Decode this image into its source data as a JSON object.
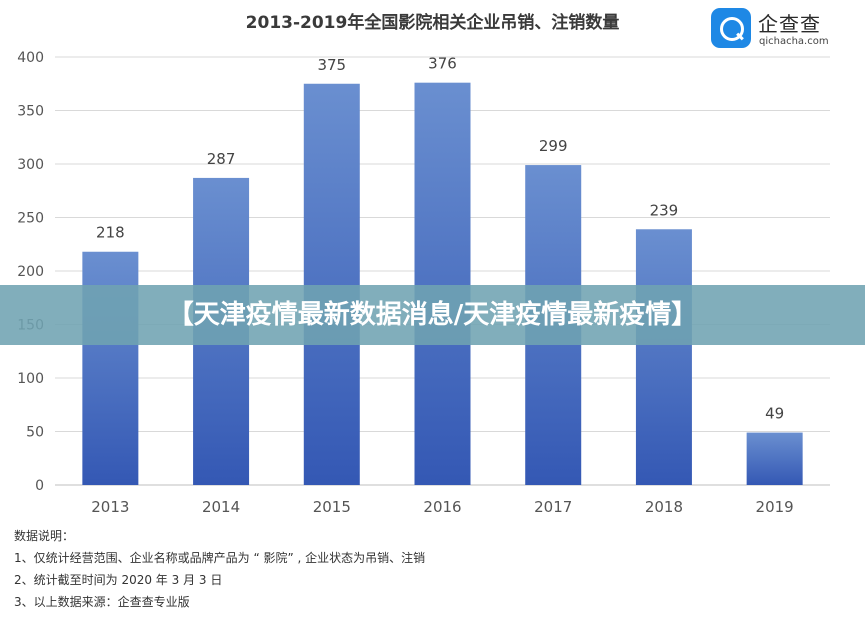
{
  "chart_data": {
    "type": "bar",
    "title": "2013-2019年全国影院相关企业吊销、注销数量",
    "categories": [
      "2013",
      "2014",
      "2015",
      "2016",
      "2017",
      "2018",
      "2019"
    ],
    "values": [
      218,
      287,
      375,
      376,
      299,
      239,
      49
    ],
    "data_labels": [
      "218",
      "287",
      "375",
      "376",
      "299",
      "239",
      "49"
    ],
    "ylim": [
      0,
      400
    ],
    "y_ticks": [
      0,
      50,
      100,
      150,
      200,
      250,
      300,
      350,
      400
    ],
    "y_tick_labels": [
      "0",
      "50",
      "100",
      "150",
      "200",
      "250",
      "300",
      "350",
      "400"
    ],
    "xlabel": "",
    "ylabel": "",
    "grid": true,
    "bar_color_top": "#6a8fd0",
    "bar_color_bottom": "#3458b4"
  },
  "logo": {
    "name": "企查查",
    "domain": "qichacha.com",
    "color": "#1e88e5"
  },
  "banner": {
    "text": "【天津疫情最新数据消息/天津疫情最新疫情】"
  },
  "notes": {
    "heading": "数据说明：",
    "lines": [
      "1、仅统计经营范围、企业名称或品牌产品为 “ 影院” , 企业状态为吊销、注销",
      "2、统计截至时间为 2020 年 3 月 3 日",
      "3、以上数据来源：企查查专业版"
    ]
  }
}
